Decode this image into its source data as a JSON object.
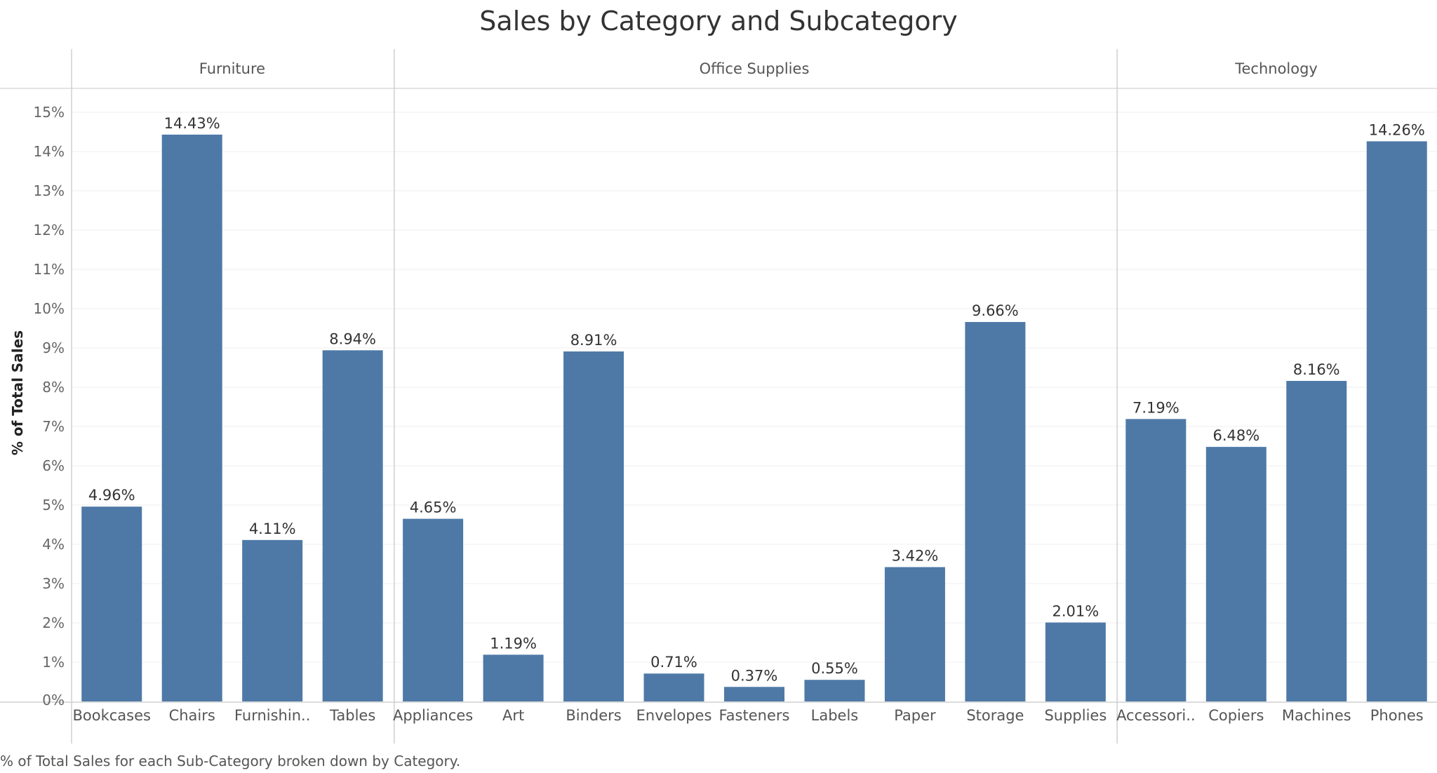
{
  "chart_data": {
    "type": "bar",
    "title": "Sales by Category and Subcategory",
    "ylabel": "% of Total Sales",
    "xlabel": "",
    "ylim": [
      0,
      15.5
    ],
    "yticks": [
      0,
      1,
      2,
      3,
      4,
      5,
      6,
      7,
      8,
      9,
      10,
      11,
      12,
      13,
      14,
      15
    ],
    "ytick_suffix": "%",
    "grid": "horizontal",
    "bar_color": "#4e79a7",
    "groups": [
      {
        "name": "Furniture",
        "categories": [
          "Bookcases",
          "Chairs",
          "Furnishin..",
          "Tables"
        ],
        "values": [
          4.96,
          14.43,
          4.11,
          8.94
        ],
        "labels": [
          "4.96%",
          "14.43%",
          "4.11%",
          "8.94%"
        ]
      },
      {
        "name": "Office Supplies",
        "categories": [
          "Appliances",
          "Art",
          "Binders",
          "Envelopes",
          "Fasteners",
          "Labels",
          "Paper",
          "Storage",
          "Supplies"
        ],
        "values": [
          4.65,
          1.19,
          8.91,
          0.71,
          0.37,
          0.55,
          3.42,
          9.66,
          2.01
        ],
        "labels": [
          "4.65%",
          "1.19%",
          "8.91%",
          "0.71%",
          "0.37%",
          "0.55%",
          "3.42%",
          "9.66%",
          "2.01%"
        ]
      },
      {
        "name": "Technology",
        "categories": [
          "Accessori..",
          "Copiers",
          "Machines",
          "Phones"
        ],
        "values": [
          7.19,
          6.48,
          8.16,
          14.26
        ],
        "labels": [
          "7.19%",
          "6.48%",
          "8.16%",
          "14.26%"
        ]
      }
    ]
  },
  "caption": "% of Total Sales for each Sub-Category broken down by Category."
}
